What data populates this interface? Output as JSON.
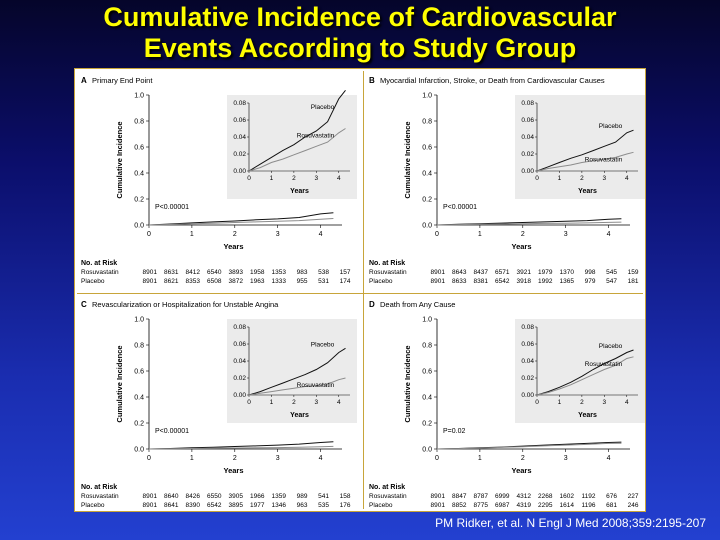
{
  "slide": {
    "title_line1": "Cumulative Incidence of Cardiovascular",
    "title_line2": "Events According to Study Group",
    "citation": "PM Ridker, et al. N Engl J Med 2008;359:2195-207"
  },
  "colors": {
    "title": "#ffff00",
    "placebo": "#111111",
    "rosuvastatin": "#8c8c8c",
    "inset_bg": "#ebebeb",
    "frame": "#c8a53a"
  },
  "chart_data": [
    {
      "type": "line",
      "panel_label": "A",
      "panel_title": "Primary End Point",
      "ylabel": "Cumulative Incidence",
      "xlabel": "Years",
      "ylim": [
        0,
        1.0
      ],
      "yticks": [
        "0.0",
        "0.2",
        "0.4",
        "0.6",
        "0.8",
        "1.0"
      ],
      "xlim": [
        0,
        4.5
      ],
      "xticks": [
        "0",
        "1",
        "2",
        "3",
        "4"
      ],
      "p_value": "P<0.00001",
      "inset": {
        "ylim": [
          0,
          0.08
        ],
        "yticks": [
          "0.00",
          "0.02",
          "0.04",
          "0.06",
          "0.08"
        ],
        "xticks": [
          "0",
          "1",
          "2",
          "3",
          "4"
        ],
        "xlabel": "Years",
        "placebo_label": "Placebo",
        "rosuvastatin_label": "Rosuvastatin"
      },
      "series": [
        {
          "name": "Placebo",
          "x": [
            0,
            0.5,
            1,
            1.5,
            2,
            2.5,
            3,
            3.5,
            4,
            4.3
          ],
          "y": [
            0,
            0.008,
            0.016,
            0.024,
            0.031,
            0.04,
            0.047,
            0.058,
            0.085,
            0.095
          ]
        },
        {
          "name": "Rosuvastatin",
          "x": [
            0,
            0.5,
            1,
            1.5,
            2,
            2.5,
            3,
            3.5,
            4,
            4.3
          ],
          "y": [
            0,
            0.004,
            0.01,
            0.014,
            0.019,
            0.024,
            0.029,
            0.034,
            0.045,
            0.05
          ]
        }
      ],
      "at_risk": {
        "heading": "No. at Risk",
        "rows": [
          {
            "label": "Rosuvastatin",
            "values": [
              "8901",
              "8631",
              "8412",
              "6540",
              "3893",
              "1958",
              "1353",
              "983",
              "538",
              "157"
            ]
          },
          {
            "label": "Placebo",
            "values": [
              "8901",
              "8621",
              "8353",
              "6508",
              "3872",
              "1963",
              "1333",
              "955",
              "531",
              "174"
            ]
          }
        ]
      }
    },
    {
      "type": "line",
      "panel_label": "B",
      "panel_title": "Myocardial Infarction, Stroke, or Death from Cardiovascular Causes",
      "ylabel": "Cumulative Incidence",
      "xlabel": "Years",
      "ylim": [
        0,
        1.0
      ],
      "yticks": [
        "0.0",
        "0.2",
        "0.4",
        "0.6",
        "0.8",
        "1.0"
      ],
      "xlim": [
        0,
        4.5
      ],
      "xticks": [
        "0",
        "1",
        "2",
        "3",
        "4"
      ],
      "p_value": "P<0.00001",
      "inset": {
        "ylim": [
          0,
          0.08
        ],
        "yticks": [
          "0.00",
          "0.02",
          "0.04",
          "0.06",
          "0.08"
        ],
        "xticks": [
          "0",
          "1",
          "2",
          "3",
          "4"
        ],
        "xlabel": "Years",
        "placebo_label": "Placebo",
        "rosuvastatin_label": "Rosuvastatin"
      },
      "series": [
        {
          "name": "Placebo",
          "x": [
            0,
            0.5,
            1,
            1.5,
            2,
            2.5,
            3,
            3.5,
            4,
            4.3
          ],
          "y": [
            0,
            0.005,
            0.01,
            0.015,
            0.019,
            0.024,
            0.029,
            0.034,
            0.045,
            0.048
          ]
        },
        {
          "name": "Rosuvastatin",
          "x": [
            0,
            0.5,
            1,
            1.5,
            2,
            2.5,
            3,
            3.5,
            4,
            4.3
          ],
          "y": [
            0,
            0.003,
            0.005,
            0.007,
            0.01,
            0.012,
            0.014,
            0.016,
            0.02,
            0.022
          ]
        }
      ],
      "at_risk": {
        "heading": "No. at Risk",
        "rows": [
          {
            "label": "Rosuvastatin",
            "values": [
              "8901",
              "8643",
              "8437",
              "6571",
              "3921",
              "1979",
              "1370",
              "998",
              "545",
              "159"
            ]
          },
          {
            "label": "Placebo",
            "values": [
              "8901",
              "8633",
              "8381",
              "6542",
              "3918",
              "1992",
              "1365",
              "979",
              "547",
              "181"
            ]
          }
        ]
      }
    },
    {
      "type": "line",
      "panel_label": "C",
      "panel_title": "Revascularization or Hospitalization for Unstable Angina",
      "ylabel": "Cumulative Incidence",
      "xlabel": "Years",
      "ylim": [
        0,
        1.0
      ],
      "yticks": [
        "0.0",
        "0.2",
        "0.4",
        "0.6",
        "0.8",
        "1.0"
      ],
      "xlim": [
        0,
        4.5
      ],
      "xticks": [
        "0",
        "1",
        "2",
        "3",
        "4"
      ],
      "p_value": "P<0.00001",
      "inset": {
        "ylim": [
          0,
          0.08
        ],
        "yticks": [
          "0.00",
          "0.02",
          "0.04",
          "0.06",
          "0.08"
        ],
        "xticks": [
          "0",
          "1",
          "2",
          "3",
          "4"
        ],
        "xlabel": "Years",
        "placebo_label": "Placebo",
        "rosuvastatin_label": "Rosuvastatin"
      },
      "series": [
        {
          "name": "Placebo",
          "x": [
            0,
            0.5,
            1,
            1.5,
            2,
            2.5,
            3,
            3.5,
            4,
            4.3
          ],
          "y": [
            0,
            0.004,
            0.009,
            0.014,
            0.019,
            0.024,
            0.03,
            0.038,
            0.05,
            0.055
          ]
        },
        {
          "name": "Rosuvastatin",
          "x": [
            0,
            0.5,
            1,
            1.5,
            2,
            2.5,
            3,
            3.5,
            4,
            4.3
          ],
          "y": [
            0,
            0.002,
            0.004,
            0.006,
            0.008,
            0.01,
            0.011,
            0.013,
            0.018,
            0.02
          ]
        }
      ],
      "at_risk": {
        "heading": "No. at Risk",
        "rows": [
          {
            "label": "Rosuvastatin",
            "values": [
              "8901",
              "8640",
              "8426",
              "6550",
              "3905",
              "1966",
              "1359",
              "989",
              "541",
              "158"
            ]
          },
          {
            "label": "Placebo",
            "values": [
              "8901",
              "8641",
              "8390",
              "6542",
              "3895",
              "1977",
              "1346",
              "963",
              "535",
              "176"
            ]
          }
        ]
      }
    },
    {
      "type": "line",
      "panel_label": "D",
      "panel_title": "Death from Any Cause",
      "ylabel": "Cumulative Incidence",
      "xlabel": "Years",
      "ylim": [
        0,
        1.0
      ],
      "yticks": [
        "0.0",
        "0.2",
        "0.4",
        "0.6",
        "0.8",
        "1.0"
      ],
      "xlim": [
        0,
        4.5
      ],
      "xticks": [
        "0",
        "1",
        "2",
        "3",
        "4"
      ],
      "p_value": "P=0.02",
      "inset": {
        "ylim": [
          0,
          0.08
        ],
        "yticks": [
          "0.00",
          "0.02",
          "0.04",
          "0.06",
          "0.08"
        ],
        "xticks": [
          "0",
          "1",
          "2",
          "3",
          "4"
        ],
        "xlabel": "Years",
        "placebo_label": "Placebo",
        "rosuvastatin_label": "Rosuvastatin"
      },
      "series": [
        {
          "name": "Placebo",
          "x": [
            0,
            0.5,
            1,
            1.5,
            2,
            2.5,
            3,
            3.5,
            4,
            4.3
          ],
          "y": [
            0,
            0.004,
            0.009,
            0.015,
            0.022,
            0.03,
            0.037,
            0.043,
            0.05,
            0.053
          ]
        },
        {
          "name": "Rosuvastatin",
          "x": [
            0,
            0.5,
            1,
            1.5,
            2,
            2.5,
            3,
            3.5,
            4,
            4.3
          ],
          "y": [
            0,
            0.003,
            0.007,
            0.012,
            0.018,
            0.024,
            0.03,
            0.035,
            0.043,
            0.045
          ]
        }
      ],
      "at_risk": {
        "heading": "No. at Risk",
        "rows": [
          {
            "label": "Rosuvastatin",
            "values": [
              "8901",
              "8847",
              "8787",
              "6999",
              "4312",
              "2268",
              "1602",
              "1192",
              "676",
              "227"
            ]
          },
          {
            "label": "Placebo",
            "values": [
              "8901",
              "8852",
              "8775",
              "6987",
              "4319",
              "2295",
              "1614",
              "1196",
              "681",
              "246"
            ]
          }
        ]
      }
    }
  ]
}
